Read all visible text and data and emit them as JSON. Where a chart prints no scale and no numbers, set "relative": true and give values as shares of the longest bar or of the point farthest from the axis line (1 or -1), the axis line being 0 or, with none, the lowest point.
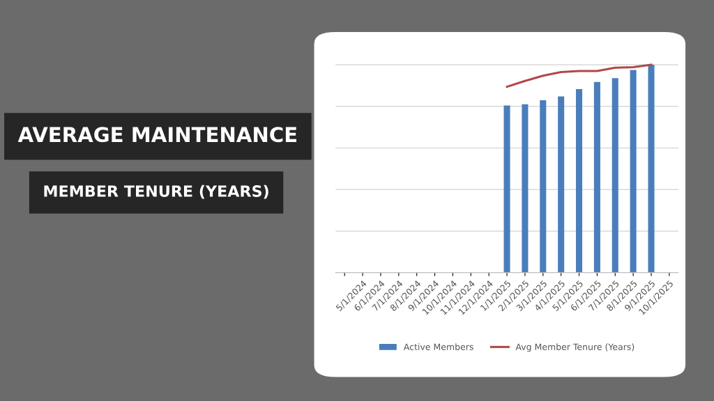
{
  "chart_data": {
    "type": "bar",
    "title": "AVERAGE MAINTENANCE",
    "subtitle": "MEMBER TENURE (YEARS)",
    "categories": [
      null,
      "5/1/2024",
      "6/1/2024",
      "7/1/2024",
      "8/1/2024",
      "9/1/2024",
      "10/1/2024",
      "11/1/2024",
      "12/1/2024",
      "1/1/2025",
      "2/1/2025",
      "3/1/2025",
      "4/1/2025",
      "5/1/2025",
      "6/1/2025",
      "7/1/2025",
      "8/1/2025",
      "9/1/2025",
      "10/1/2025"
    ],
    "relative": true,
    "grid": "y",
    "legend": "bottom",
    "series": [
      {
        "name": "Active Members",
        "color": "#4a7ebb",
        "values": [
          null,
          null,
          null,
          null,
          null,
          null,
          null,
          null,
          null,
          0.804,
          0.81,
          0.829,
          0.848,
          0.883,
          0.917,
          0.936,
          0.975,
          1.0,
          null
        ]
      },
      {
        "name": "Avg Member Tenure (Years)",
        "type": "line",
        "color": "#b04848",
        "values": [
          null,
          null,
          null,
          null,
          null,
          null,
          null,
          null,
          null,
          0.894,
          0.922,
          0.947,
          0.965,
          0.97,
          0.97,
          0.986,
          0.988,
          1.0,
          null
        ]
      }
    ]
  }
}
